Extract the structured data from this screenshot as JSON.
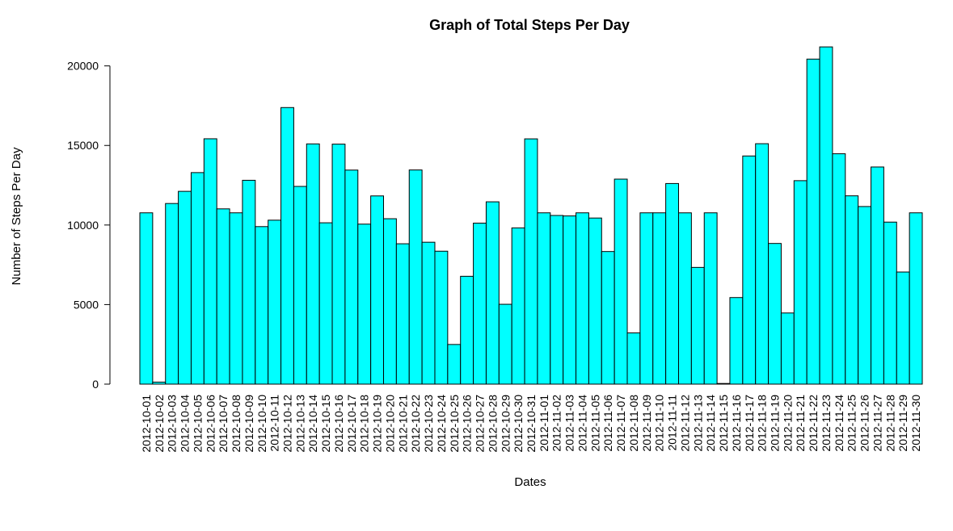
{
  "chart_data": {
    "type": "bar",
    "title": "Graph of Total Steps Per Day",
    "xlabel": "Dates",
    "ylabel": "Number of Steps Per Day",
    "ylim": [
      0,
      21200
    ],
    "yticks": [
      0,
      5000,
      10000,
      15000,
      20000
    ],
    "bar_color": "#00FFFF",
    "border_color": "#000000",
    "grid": false,
    "categories": [
      "2012-10-01",
      "2012-10-02",
      "2012-10-03",
      "2012-10-04",
      "2012-10-05",
      "2012-10-06",
      "2012-10-07",
      "2012-10-08",
      "2012-10-09",
      "2012-10-10",
      "2012-10-11",
      "2012-10-12",
      "2012-10-13",
      "2012-10-14",
      "2012-10-15",
      "2012-10-16",
      "2012-10-17",
      "2012-10-18",
      "2012-10-19",
      "2012-10-20",
      "2012-10-21",
      "2012-10-22",
      "2012-10-23",
      "2012-10-24",
      "2012-10-25",
      "2012-10-26",
      "2012-10-27",
      "2012-10-28",
      "2012-10-29",
      "2012-10-30",
      "2012-10-31",
      "2012-11-01",
      "2012-11-02",
      "2012-11-03",
      "2012-11-04",
      "2012-11-05",
      "2012-11-06",
      "2012-11-07",
      "2012-11-08",
      "2012-11-09",
      "2012-11-10",
      "2012-11-11",
      "2012-11-12",
      "2012-11-13",
      "2012-11-14",
      "2012-11-15",
      "2012-11-16",
      "2012-11-17",
      "2012-11-18",
      "2012-11-19",
      "2012-11-20",
      "2012-11-21",
      "2012-11-22",
      "2012-11-23",
      "2012-11-24",
      "2012-11-25",
      "2012-11-26",
      "2012-11-27",
      "2012-11-28",
      "2012-11-29",
      "2012-11-30"
    ],
    "values": [
      10766,
      126,
      11352,
      12116,
      13294,
      15420,
      11015,
      10766,
      12811,
      9900,
      10304,
      17382,
      12426,
      15098,
      10139,
      15084,
      13452,
      10056,
      11829,
      10395,
      8821,
      13460,
      8918,
      8355,
      2492,
      6778,
      10119,
      11458,
      5018,
      9819,
      15414,
      10766,
      10600,
      10571,
      10766,
      10439,
      8334,
      12883,
      3219,
      10766,
      10766,
      12608,
      10765,
      7336,
      10766,
      41,
      5441,
      14339,
      15110,
      8841,
      4472,
      12787,
      20427,
      21194,
      14478,
      11834,
      11162,
      13646,
      10183,
      7047,
      10766
    ]
  }
}
